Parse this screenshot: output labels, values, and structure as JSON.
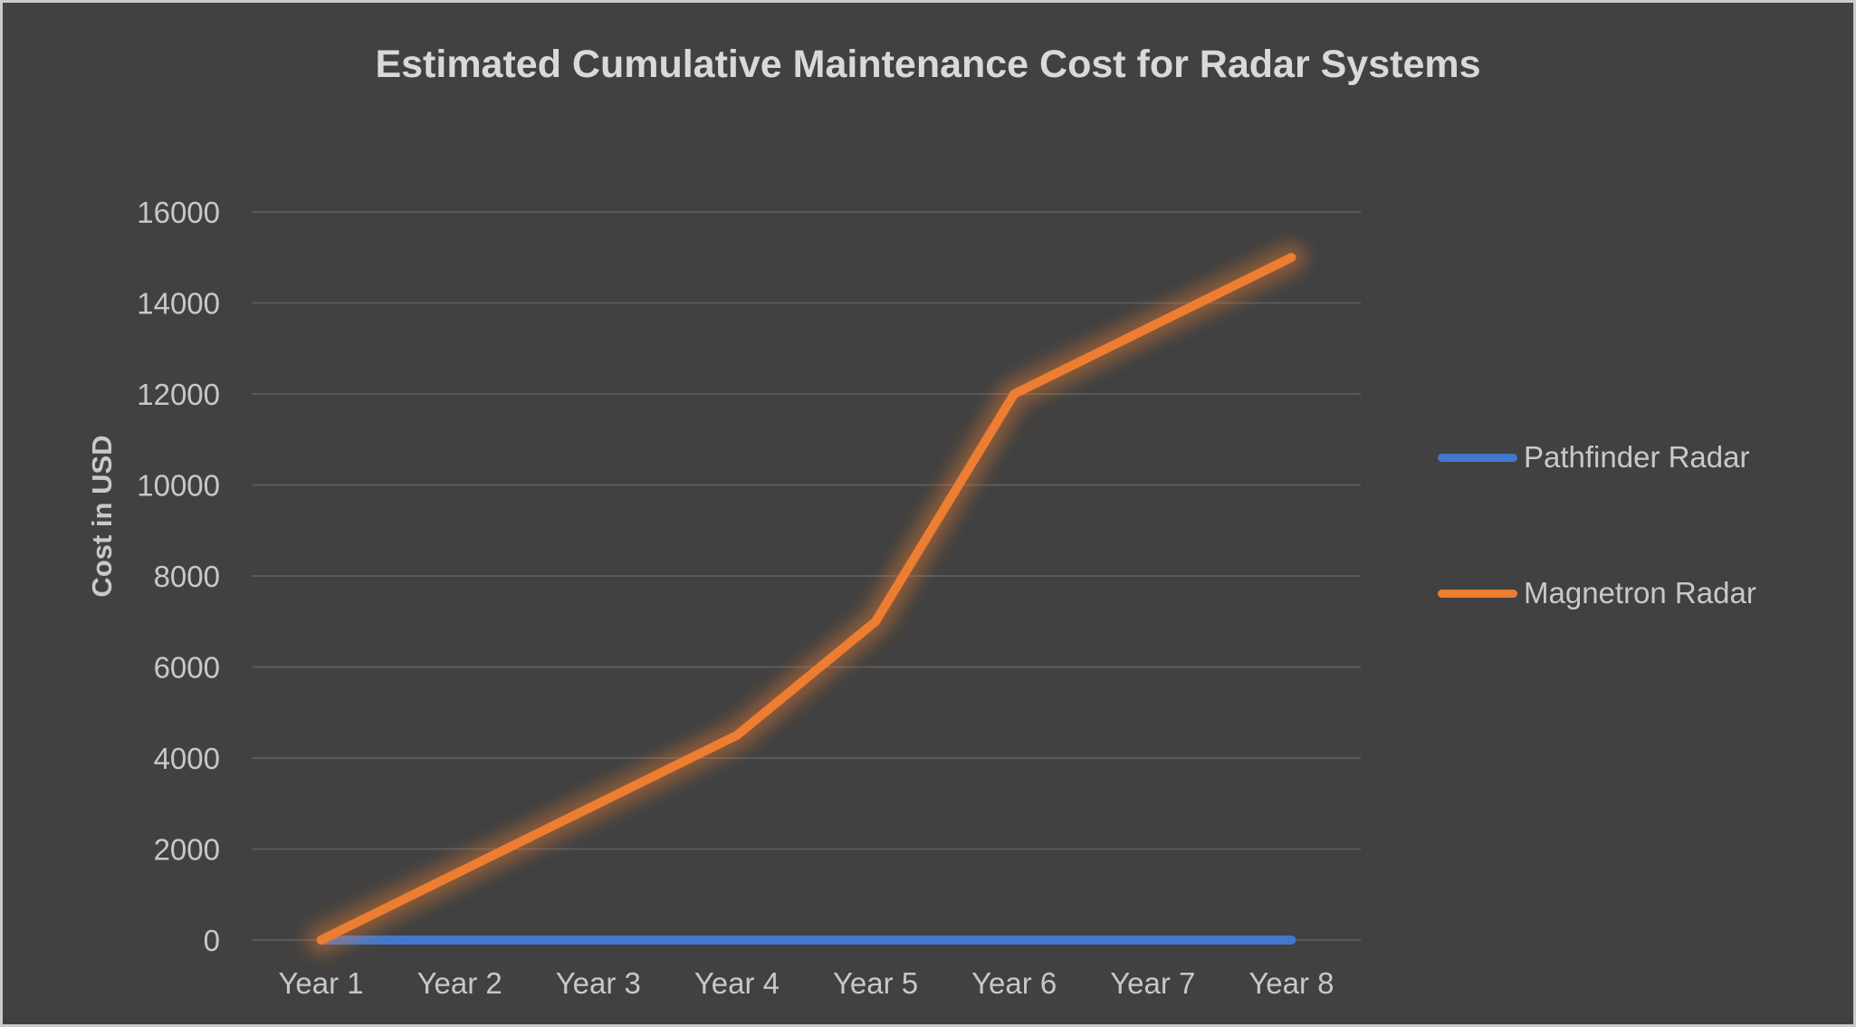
{
  "window": {
    "background_color": "#414141",
    "border_color": "#CBCBCB",
    "text_color": "#C9C9C9"
  },
  "chart_data": {
    "type": "line",
    "title": "Estimated Cumulative Maintenance Cost for Radar Systems",
    "xlabel": "",
    "ylabel": "Cost in USD",
    "categories": [
      "Year 1",
      "Year 2",
      "Year 3",
      "Year 4",
      "Year 5",
      "Year 6",
      "Year 7",
      "Year 8"
    ],
    "series": [
      {
        "name": "Pathfinder Radar",
        "color": "#4377CE",
        "glow_color": "rgba(25,45,100,0.55)",
        "values": [
          0,
          0,
          0,
          0,
          0,
          0,
          0,
          0
        ]
      },
      {
        "name": "Magnetron Radar",
        "color": "#ED7D31",
        "glow_color": "rgba(237,125,49,0.42)",
        "values": [
          0,
          1500,
          3000,
          4500,
          7000,
          12000,
          13500,
          15000
        ]
      }
    ],
    "ylim": [
      0,
      16000
    ],
    "yticks": [
      0,
      2000,
      4000,
      6000,
      8000,
      10000,
      12000,
      14000,
      16000
    ],
    "grid": "horizontal",
    "gridline_color": "#5A5A5A",
    "legend_position": "right"
  }
}
